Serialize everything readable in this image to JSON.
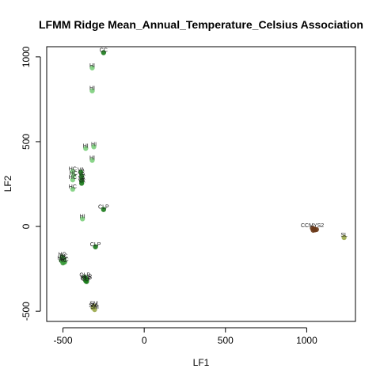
{
  "chart_data": {
    "type": "scatter",
    "title": "LFMM Ridge Mean_Annual_Temperature_Celsius Association",
    "xlabel": "LF1",
    "ylabel": "LF2",
    "xlim": [
      -600,
      1300
    ],
    "ylim": [
      -560,
      1060
    ],
    "x_ticks": [
      -500,
      0,
      500,
      1000
    ],
    "y_ticks": [
      -500,
      0,
      500,
      1000
    ],
    "grid": false,
    "colors": {
      "dark_green": "#1a7a1a",
      "mid_green": "#3a9a3a",
      "light_green": "#7ccf7c",
      "brown": "#6b3a1a",
      "olive": "#9aa84a"
    },
    "points": [
      {
        "x": -250,
        "y": 1025,
        "label": "CC",
        "color": "dark_green"
      },
      {
        "x": -320,
        "y": 935,
        "label": "HI",
        "color": "light_green"
      },
      {
        "x": -320,
        "y": 800,
        "label": "HI",
        "color": "light_green"
      },
      {
        "x": -360,
        "y": 460,
        "label": "HI",
        "color": "light_green"
      },
      {
        "x": -310,
        "y": 470,
        "label": "HI",
        "color": "light_green"
      },
      {
        "x": -320,
        "y": 390,
        "label": "HI",
        "color": "light_green"
      },
      {
        "x": -440,
        "y": 325,
        "label": "HC",
        "color": "light_green"
      },
      {
        "x": -390,
        "y": 320,
        "label": "VA",
        "color": "dark_green"
      },
      {
        "x": -435,
        "y": 300,
        "label": "HC",
        "color": "light_green"
      },
      {
        "x": -385,
        "y": 295,
        "label": "VA",
        "color": "dark_green"
      },
      {
        "x": -440,
        "y": 275,
        "label": "HC",
        "color": "light_green"
      },
      {
        "x": -385,
        "y": 270,
        "label": "VA",
        "color": "dark_green"
      },
      {
        "x": -385,
        "y": 255,
        "label": "VA",
        "color": "dark_green"
      },
      {
        "x": -440,
        "y": 220,
        "label": "HC",
        "color": "light_green"
      },
      {
        "x": -250,
        "y": 100,
        "label": "CLP",
        "color": "dark_green"
      },
      {
        "x": -380,
        "y": 45,
        "label": "HI",
        "color": "light_green"
      },
      {
        "x": -300,
        "y": -120,
        "label": "CLP",
        "color": "dark_green"
      },
      {
        "x": -505,
        "y": -180,
        "label": "HC",
        "color": "mid_green"
      },
      {
        "x": -495,
        "y": -190,
        "label": "HC",
        "color": "mid_green"
      },
      {
        "x": -510,
        "y": -200,
        "label": "HC",
        "color": "mid_green"
      },
      {
        "x": -490,
        "y": -210,
        "label": "HC",
        "color": "mid_green"
      },
      {
        "x": -500,
        "y": -215,
        "label": "HC",
        "color": "mid_green"
      },
      {
        "x": -365,
        "y": -300,
        "label": "CLP",
        "color": "dark_green"
      },
      {
        "x": -355,
        "y": -310,
        "label": "CLP",
        "color": "dark_green"
      },
      {
        "x": -360,
        "y": -320,
        "label": "CLP",
        "color": "dark_green"
      },
      {
        "x": -355,
        "y": -325,
        "label": "CLP",
        "color": "dark_green"
      },
      {
        "x": -310,
        "y": -470,
        "label": "SM",
        "color": "olive"
      },
      {
        "x": -315,
        "y": -480,
        "label": "SM",
        "color": "olive"
      },
      {
        "x": -305,
        "y": -490,
        "label": "SM",
        "color": "olive"
      },
      {
        "x": 1035,
        "y": -10,
        "label": "CCMYS2",
        "color": "brown"
      },
      {
        "x": 1045,
        "y": -15,
        "label": "",
        "color": "brown"
      },
      {
        "x": 1050,
        "y": -20,
        "label": "",
        "color": "brown"
      },
      {
        "x": 1040,
        "y": -22,
        "label": "",
        "color": "brown"
      },
      {
        "x": 1060,
        "y": -18,
        "label": "",
        "color": "brown"
      },
      {
        "x": 1230,
        "y": -65,
        "label": "SL",
        "color": "olive"
      }
    ]
  }
}
